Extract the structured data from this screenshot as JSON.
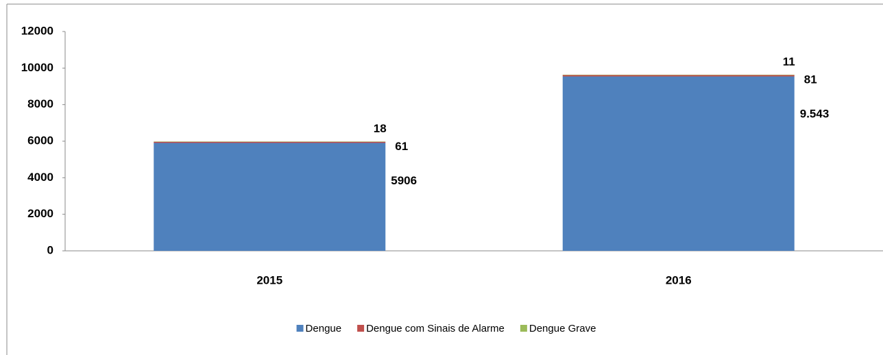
{
  "chart_data": {
    "type": "bar",
    "stacked": true,
    "categories": [
      "2015",
      "2016"
    ],
    "series": [
      {
        "name": "Dengue",
        "color": "#4f81bd",
        "values": [
          5906,
          9543
        ],
        "value_labels": [
          "5906",
          "9.543"
        ]
      },
      {
        "name": "Dengue com Sinais de Alarme",
        "color": "#c0504d",
        "values": [
          61,
          81
        ]
      },
      {
        "name": "Dengue Grave",
        "color": "#9bbb59",
        "values": [
          18,
          11
        ]
      }
    ],
    "ylim": [
      0,
      12000
    ],
    "yticks": [
      0,
      2000,
      4000,
      6000,
      8000,
      10000,
      12000
    ],
    "grid": false,
    "legend": "bottom"
  }
}
